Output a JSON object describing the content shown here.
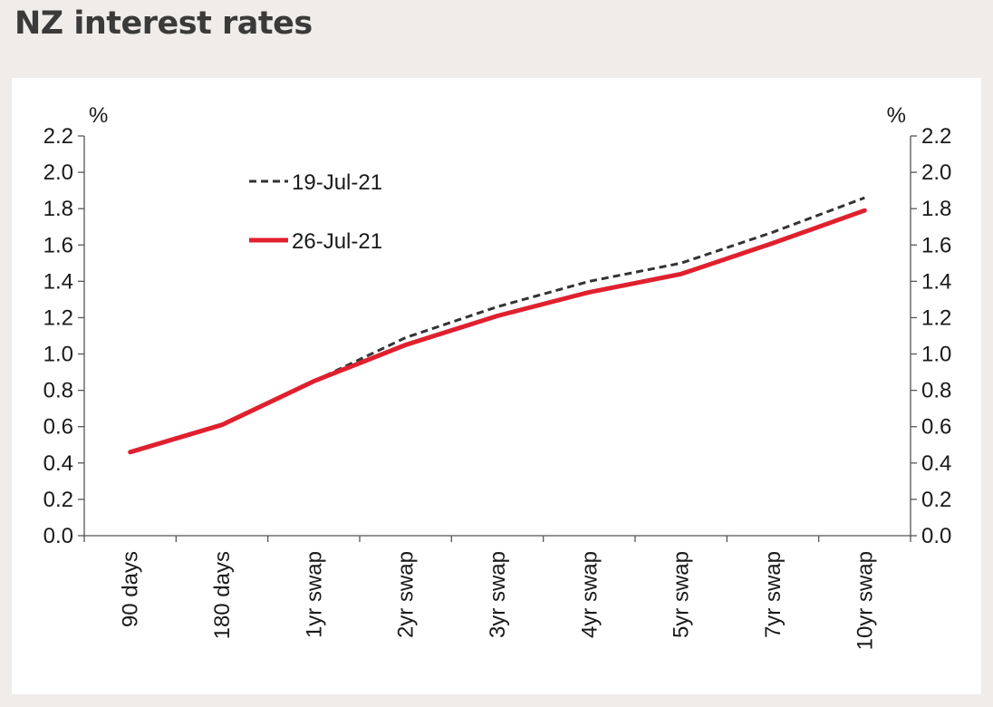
{
  "chart_data": {
    "type": "line",
    "title": "NZ interest rates",
    "ylabel_left": "%",
    "ylabel_right": "%",
    "ylim": [
      0,
      2.2
    ],
    "ytick_step": 0.2,
    "y_axes": "both",
    "grid": false,
    "legend_position": "top-left",
    "categories": [
      "90 days",
      "180 days",
      "1yr swap",
      "2yr swap",
      "3yr swap",
      "4yr swap",
      "5yr swap",
      "7yr swap",
      "10yr swap"
    ],
    "series": [
      {
        "name": "19-Jul-21",
        "style": "dashed",
        "color": "#333333",
        "values": [
          null,
          null,
          0.85,
          1.09,
          1.26,
          1.4,
          1.5,
          1.67,
          1.86
        ]
      },
      {
        "name": "26-Jul-21",
        "style": "solid",
        "color": "#e0202e",
        "values": [
          0.46,
          0.61,
          0.85,
          1.05,
          1.21,
          1.34,
          1.44,
          1.61,
          1.79
        ]
      }
    ]
  }
}
